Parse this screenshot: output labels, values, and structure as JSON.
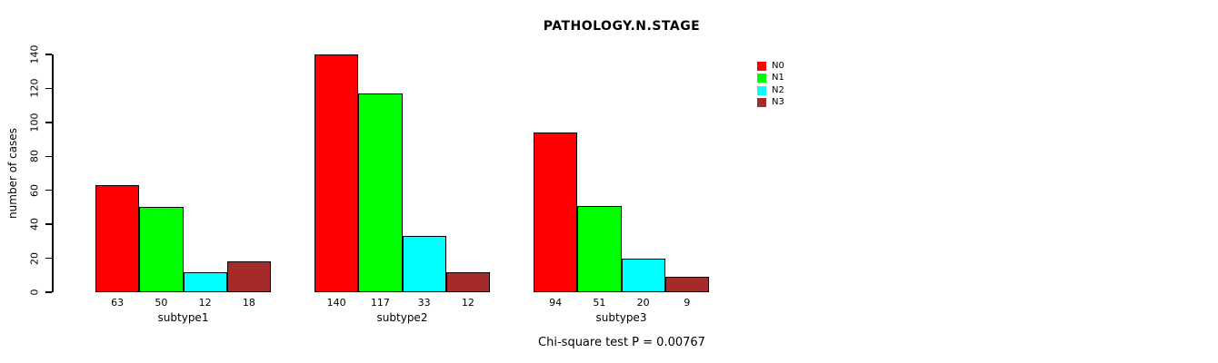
{
  "chart_data": {
    "type": "bar",
    "title": "PATHOLOGY.N.STAGE",
    "ylabel": "number of cases",
    "footer": "Chi-square test P = 0.00767",
    "categories": [
      "subtype1",
      "subtype2",
      "subtype3"
    ],
    "series": [
      {
        "name": "N0",
        "color": "#FF0000",
        "values": [
          63,
          140,
          94
        ]
      },
      {
        "name": "N1",
        "color": "#00FF00",
        "values": [
          50,
          117,
          51
        ]
      },
      {
        "name": "N2",
        "color": "#00FFFF",
        "values": [
          12,
          33,
          20
        ]
      },
      {
        "name": "N3",
        "color": "#A52A2A",
        "values": [
          18,
          12,
          9
        ]
      }
    ],
    "ylim": [
      0,
      140
    ],
    "yticks": [
      0,
      20,
      40,
      60,
      80,
      100,
      120,
      140
    ],
    "bar_value_labels": true,
    "legend_position": "right",
    "grid": false,
    "background": "#ffffff",
    "axis_color": "#000000"
  }
}
